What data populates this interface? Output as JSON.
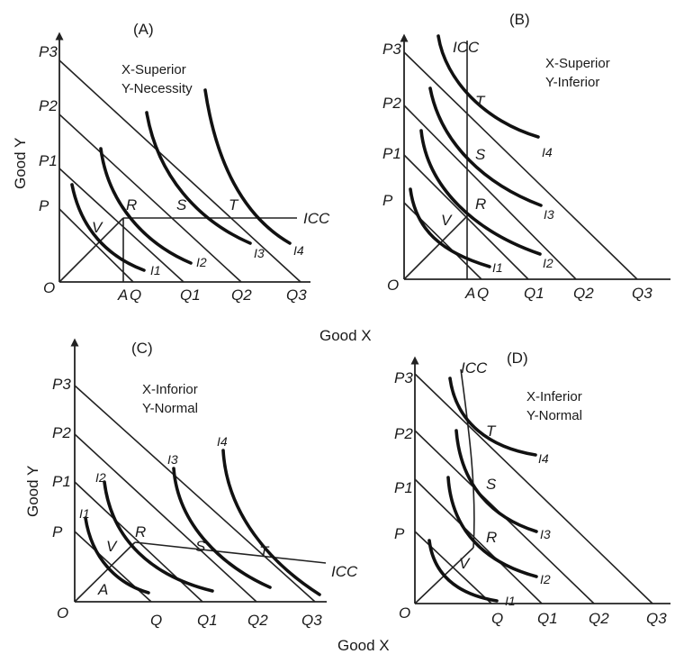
{
  "axes": {
    "y_label": "Good Y",
    "x_label": "Good X"
  },
  "panels": [
    {
      "id": "A",
      "title": "(A)",
      "caption_line1": "X-Superior",
      "caption_line2": "Y-Necessity",
      "origin": "O",
      "y_labels": [
        "P",
        "P1",
        "P2",
        "P3"
      ],
      "x_labels": [
        "A",
        "Q",
        "Q1",
        "Q2",
        "Q3"
      ],
      "points": [
        "V",
        "R",
        "S",
        "T"
      ],
      "icc": "ICC",
      "curves": [
        "I1",
        "I2",
        "I3",
        "I4"
      ]
    },
    {
      "id": "B",
      "title": "(B)",
      "caption_line1": "X-Superior",
      "caption_line2": "Y-Inferior",
      "origin": "O",
      "y_labels": [
        "P",
        "P1",
        "P2",
        "P3"
      ],
      "x_labels": [
        "A",
        "Q",
        "Q1",
        "Q2",
        "Q3"
      ],
      "points": [
        "V",
        "R",
        "S",
        "T"
      ],
      "icc": "ICC",
      "curves": [
        "I1",
        "I2",
        "I3",
        "I4"
      ]
    },
    {
      "id": "C",
      "title": "(C)",
      "caption_line1": "X-Inforior",
      "caption_line2": "Y-Normal",
      "origin": "O",
      "y_labels": [
        "P",
        "P1",
        "P2",
        "P3"
      ],
      "x_labels": [
        "Q",
        "Q1",
        "Q2",
        "Q3"
      ],
      "points": [
        "A",
        "V",
        "R",
        "S",
        "T"
      ],
      "icc": "ICC",
      "curves": [
        "I1",
        "I2",
        "I3",
        "I4"
      ]
    },
    {
      "id": "D",
      "title": "(D)",
      "caption_line1": "X-Inferior",
      "caption_line2": "Y-Normal",
      "origin": "O",
      "y_labels": [
        "P",
        "P1",
        "P2",
        "P3"
      ],
      "x_labels": [
        "Q",
        "Q1",
        "Q2",
        "Q3"
      ],
      "points": [
        "V",
        "R",
        "S",
        "T"
      ],
      "icc": "ICC",
      "curves": [
        "I1",
        "I2",
        "I3",
        "I4"
      ]
    }
  ]
}
